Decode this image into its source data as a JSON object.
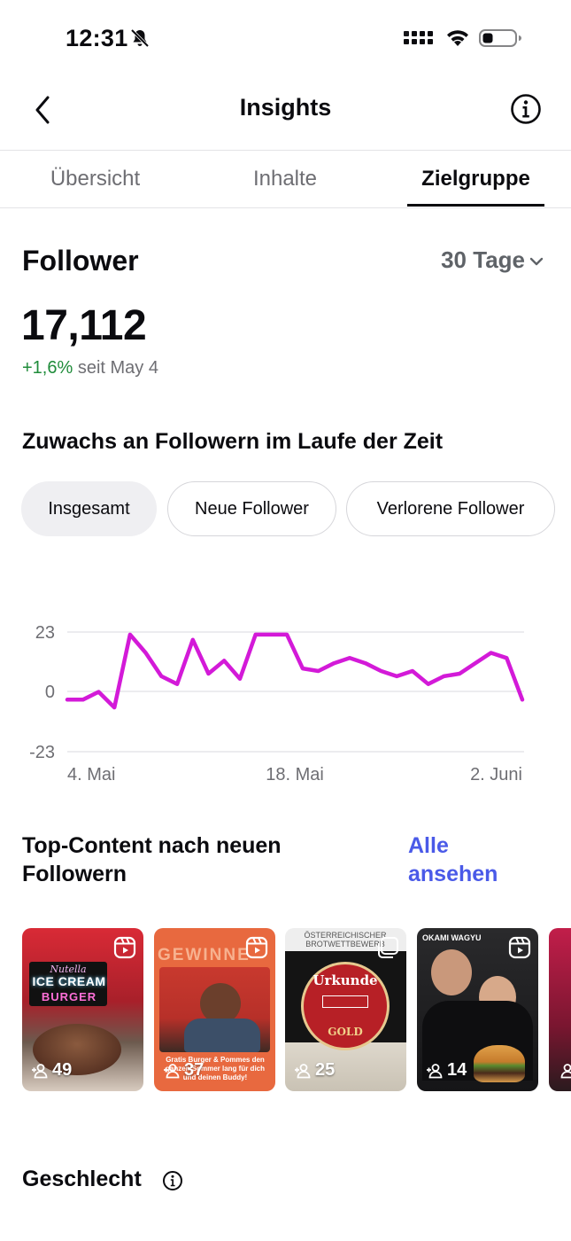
{
  "status_bar": {
    "time": "12:31"
  },
  "nav": {
    "title": "Insights"
  },
  "tabs": [
    {
      "label": "Übersicht",
      "active": false
    },
    {
      "label": "Inhalte",
      "active": false
    },
    {
      "label": "Zielgruppe",
      "active": true
    }
  ],
  "followers": {
    "title": "Follower",
    "period": "30 Tage",
    "count": "17,112",
    "growth_pct": "+1,6%",
    "growth_since": "seit May 4"
  },
  "growth_section": {
    "heading": "Zuwachs an Followern im Laufe der Zeit",
    "filters": [
      {
        "label": "Insgesamt",
        "active": true
      },
      {
        "label": "Neue Follower",
        "active": false
      },
      {
        "label": "Verlorene Follower",
        "active": false
      }
    ]
  },
  "chart_data": {
    "type": "line",
    "y_ticks": [
      "23",
      "0",
      "-23"
    ],
    "x_ticks": [
      "4. Mai",
      "18. Mai",
      "2. Juni"
    ],
    "ylim": [
      -23,
      23
    ],
    "line_color": "#d31ad8",
    "x": [
      "4. Mai",
      "5. Mai",
      "6. Mai",
      "7. Mai",
      "8. Mai",
      "9. Mai",
      "10. Mai",
      "11. Mai",
      "12. Mai",
      "13. Mai",
      "14. Mai",
      "15. Mai",
      "16. Mai",
      "17. Mai",
      "18. Mai",
      "19. Mai",
      "20. Mai",
      "21. Mai",
      "22. Mai",
      "23. Mai",
      "24. Mai",
      "25. Mai",
      "26. Mai",
      "27. Mai",
      "28. Mai",
      "29. Mai",
      "30. Mai",
      "31. Mai",
      "1. Juni",
      "2. Juni"
    ],
    "series": [
      {
        "values": [
          -3,
          -3,
          0,
          -6,
          22,
          15,
          6,
          3,
          20,
          7,
          12,
          5,
          22,
          22,
          22,
          9,
          8,
          11,
          13,
          11,
          8,
          6,
          8,
          3,
          6,
          7,
          11,
          15,
          13,
          -3
        ]
      }
    ]
  },
  "top_content": {
    "title": "Top-Content nach neuen Followern",
    "see_all": "Alle ansehen",
    "items": [
      {
        "count": "49",
        "caption_top": "Nutella",
        "caption_main": "ICE CREAM",
        "caption_sub": "BURGER",
        "bg": "#c22531"
      },
      {
        "count": "37",
        "caption_top": "GEWINNE",
        "caption_main": "Gratis Burger & Pommes den ganzen Sommer lang für dich und deinen Buddy!",
        "bg": "#e8693f"
      },
      {
        "count": "25",
        "caption_top": "ÖSTERREICHISCHER BROTWETTBEWERB",
        "caption_main": "Urkunde",
        "caption_sub": "GOLD",
        "bg": "#b72026"
      },
      {
        "count": "14",
        "caption_top": "OKAMI WAGYU",
        "bg": "#1c1c1e"
      },
      {
        "count": "",
        "bg": "#c21e4a"
      }
    ]
  },
  "gender": {
    "title": "Geschlecht"
  }
}
